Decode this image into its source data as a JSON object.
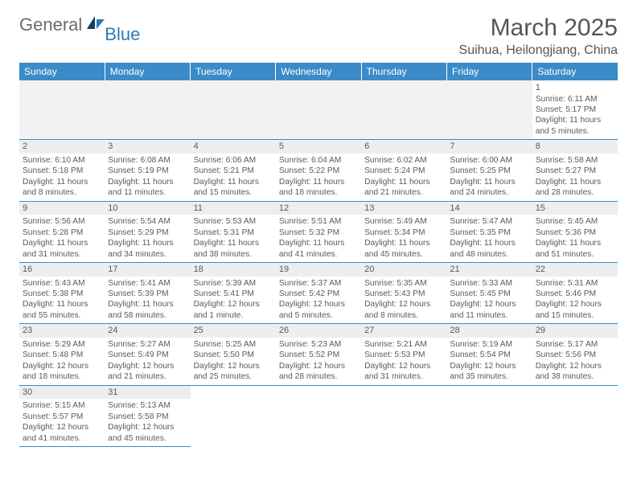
{
  "logo": {
    "general": "General",
    "blue": "Blue"
  },
  "title": "March 2025",
  "location": "Suihua, Heilongjiang, China",
  "colors": {
    "header_bg": "#3b8bc8",
    "header_text": "#ffffff",
    "border": "#3b8bc8",
    "text": "#5a5a5a",
    "daystrip": "#eeeeee"
  },
  "weekdays": [
    "Sunday",
    "Monday",
    "Tuesday",
    "Wednesday",
    "Thursday",
    "Friday",
    "Saturday"
  ],
  "days": {
    "1": {
      "sunrise": "6:11 AM",
      "sunset": "5:17 PM",
      "daylight": "11 hours and 5 minutes."
    },
    "2": {
      "sunrise": "6:10 AM",
      "sunset": "5:18 PM",
      "daylight": "11 hours and 8 minutes."
    },
    "3": {
      "sunrise": "6:08 AM",
      "sunset": "5:19 PM",
      "daylight": "11 hours and 11 minutes."
    },
    "4": {
      "sunrise": "6:06 AM",
      "sunset": "5:21 PM",
      "daylight": "11 hours and 15 minutes."
    },
    "5": {
      "sunrise": "6:04 AM",
      "sunset": "5:22 PM",
      "daylight": "11 hours and 18 minutes."
    },
    "6": {
      "sunrise": "6:02 AM",
      "sunset": "5:24 PM",
      "daylight": "11 hours and 21 minutes."
    },
    "7": {
      "sunrise": "6:00 AM",
      "sunset": "5:25 PM",
      "daylight": "11 hours and 24 minutes."
    },
    "8": {
      "sunrise": "5:58 AM",
      "sunset": "5:27 PM",
      "daylight": "11 hours and 28 minutes."
    },
    "9": {
      "sunrise": "5:56 AM",
      "sunset": "5:28 PM",
      "daylight": "11 hours and 31 minutes."
    },
    "10": {
      "sunrise": "5:54 AM",
      "sunset": "5:29 PM",
      "daylight": "11 hours and 34 minutes."
    },
    "11": {
      "sunrise": "5:53 AM",
      "sunset": "5:31 PM",
      "daylight": "11 hours and 38 minutes."
    },
    "12": {
      "sunrise": "5:51 AM",
      "sunset": "5:32 PM",
      "daylight": "11 hours and 41 minutes."
    },
    "13": {
      "sunrise": "5:49 AM",
      "sunset": "5:34 PM",
      "daylight": "11 hours and 45 minutes."
    },
    "14": {
      "sunrise": "5:47 AM",
      "sunset": "5:35 PM",
      "daylight": "11 hours and 48 minutes."
    },
    "15": {
      "sunrise": "5:45 AM",
      "sunset": "5:36 PM",
      "daylight": "11 hours and 51 minutes."
    },
    "16": {
      "sunrise": "5:43 AM",
      "sunset": "5:38 PM",
      "daylight": "11 hours and 55 minutes."
    },
    "17": {
      "sunrise": "5:41 AM",
      "sunset": "5:39 PM",
      "daylight": "11 hours and 58 minutes."
    },
    "18": {
      "sunrise": "5:39 AM",
      "sunset": "5:41 PM",
      "daylight": "12 hours and 1 minute."
    },
    "19": {
      "sunrise": "5:37 AM",
      "sunset": "5:42 PM",
      "daylight": "12 hours and 5 minutes."
    },
    "20": {
      "sunrise": "5:35 AM",
      "sunset": "5:43 PM",
      "daylight": "12 hours and 8 minutes."
    },
    "21": {
      "sunrise": "5:33 AM",
      "sunset": "5:45 PM",
      "daylight": "12 hours and 11 minutes."
    },
    "22": {
      "sunrise": "5:31 AM",
      "sunset": "5:46 PM",
      "daylight": "12 hours and 15 minutes."
    },
    "23": {
      "sunrise": "5:29 AM",
      "sunset": "5:48 PM",
      "daylight": "12 hours and 18 minutes."
    },
    "24": {
      "sunrise": "5:27 AM",
      "sunset": "5:49 PM",
      "daylight": "12 hours and 21 minutes."
    },
    "25": {
      "sunrise": "5:25 AM",
      "sunset": "5:50 PM",
      "daylight": "12 hours and 25 minutes."
    },
    "26": {
      "sunrise": "5:23 AM",
      "sunset": "5:52 PM",
      "daylight": "12 hours and 28 minutes."
    },
    "27": {
      "sunrise": "5:21 AM",
      "sunset": "5:53 PM",
      "daylight": "12 hours and 31 minutes."
    },
    "28": {
      "sunrise": "5:19 AM",
      "sunset": "5:54 PM",
      "daylight": "12 hours and 35 minutes."
    },
    "29": {
      "sunrise": "5:17 AM",
      "sunset": "5:56 PM",
      "daylight": "12 hours and 38 minutes."
    },
    "30": {
      "sunrise": "5:15 AM",
      "sunset": "5:57 PM",
      "daylight": "12 hours and 41 minutes."
    },
    "31": {
      "sunrise": "5:13 AM",
      "sunset": "5:58 PM",
      "daylight": "12 hours and 45 minutes."
    }
  },
  "labels": {
    "sunrise": "Sunrise: ",
    "sunset": "Sunset: ",
    "daylight": "Daylight: "
  },
  "layout": {
    "first_day_col": 6,
    "total_days": 31
  }
}
